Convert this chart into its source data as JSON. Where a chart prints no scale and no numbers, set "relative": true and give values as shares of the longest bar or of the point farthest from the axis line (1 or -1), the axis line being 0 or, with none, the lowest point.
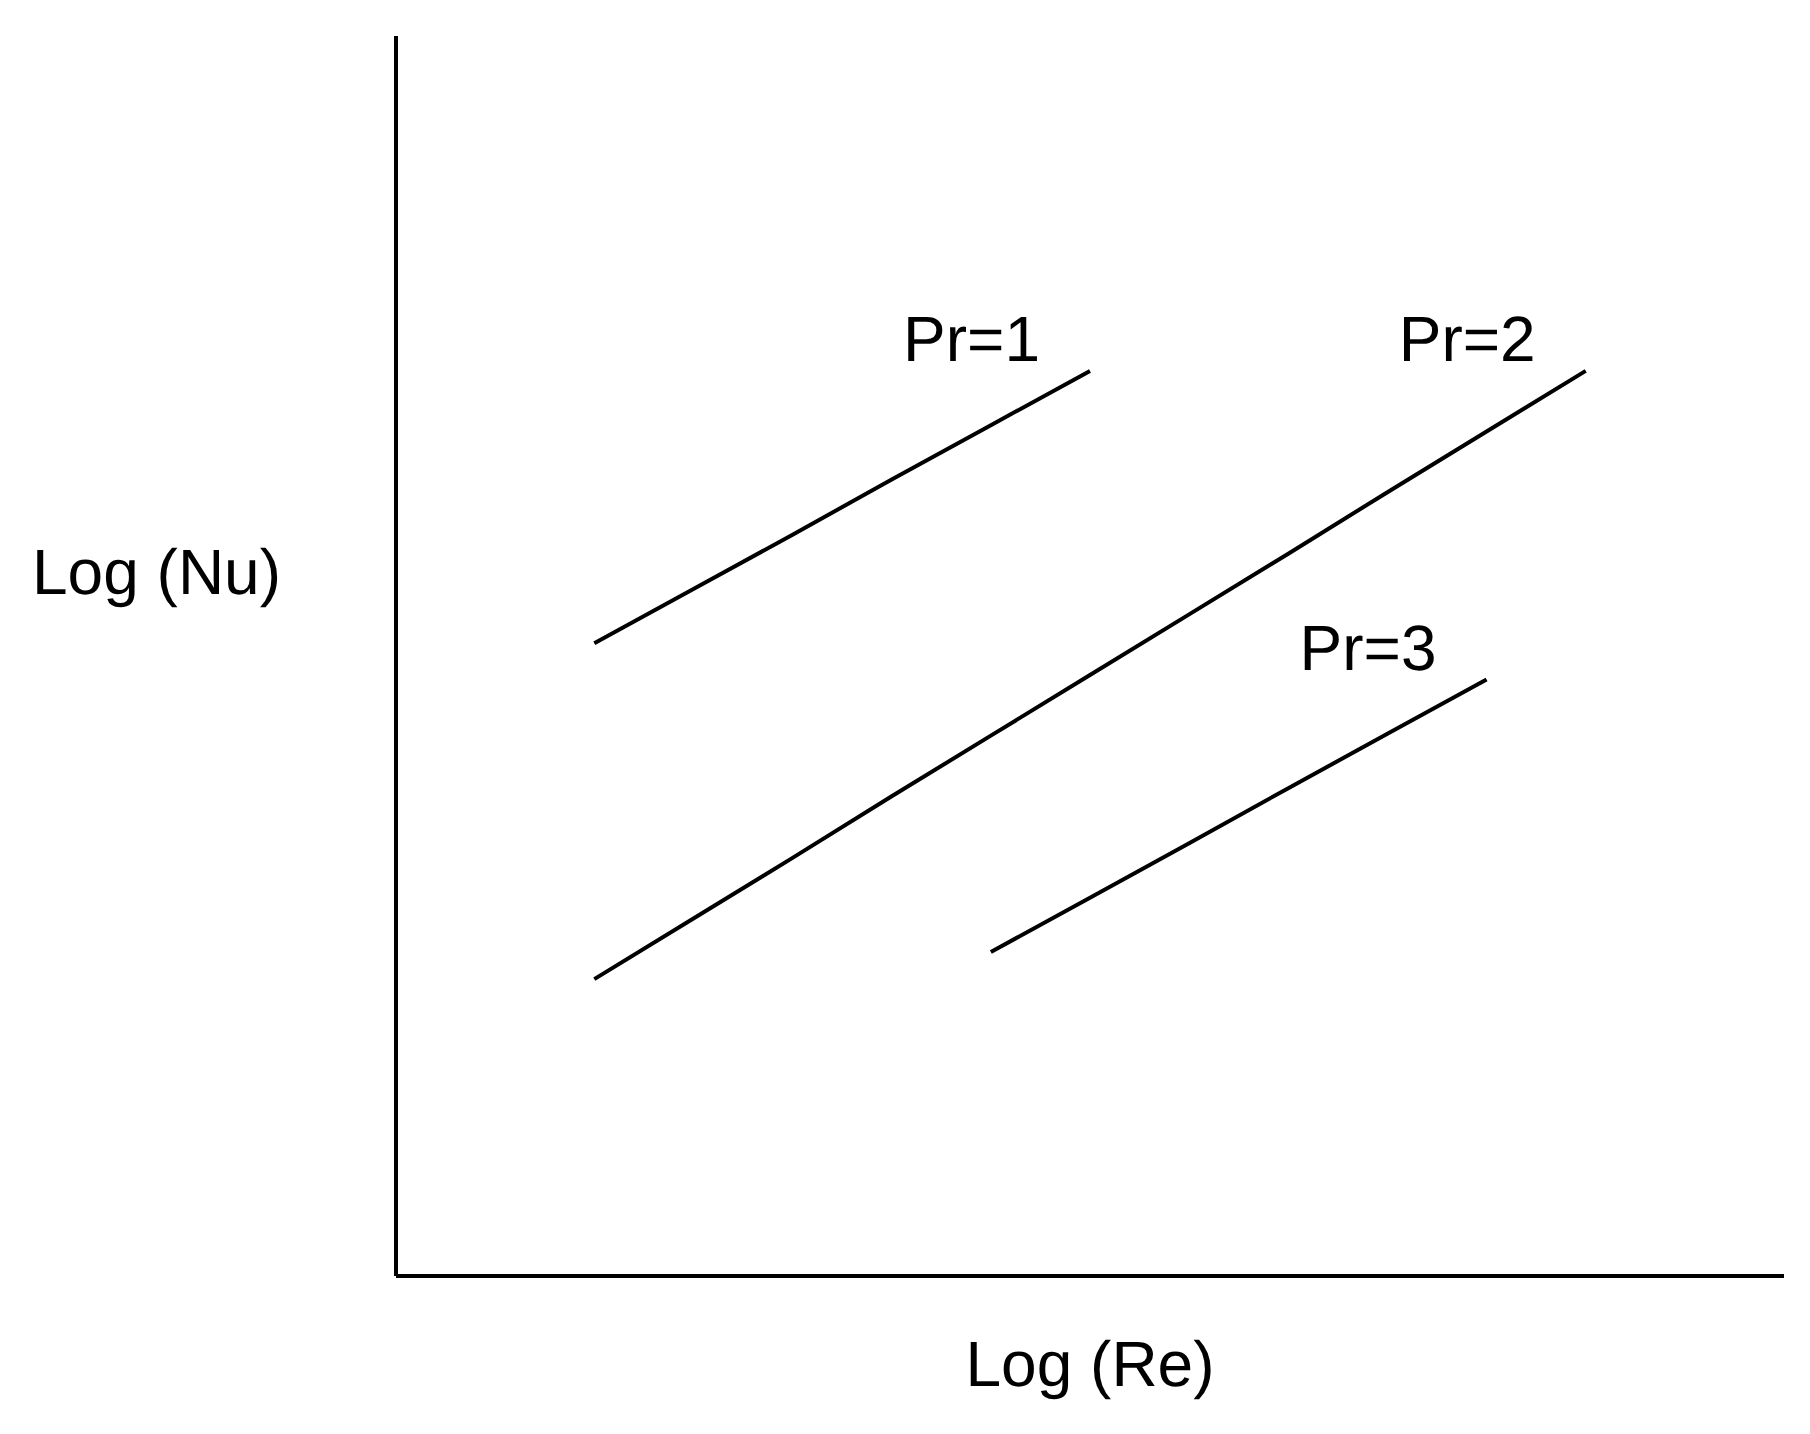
{
  "chart_data": {
    "type": "line",
    "xlabel": "Log (Re)",
    "ylabel": "Log (Nu)",
    "relative": true,
    "grid": false,
    "marker": "none",
    "line_style": "solid",
    "categories": [
      null,
      null,
      null,
      null,
      null,
      null,
      null,
      null,
      null,
      null,
      null,
      null,
      null,
      null,
      null
    ],
    "series": [
      {
        "name": "Pr=1",
        "color": "#000000",
        "values": [
          null,
          null,
          0.699,
          0.759,
          0.819,
          0.88,
          0.94,
          1,
          null,
          null,
          null,
          null,
          null,
          null,
          null
        ]
      },
      {
        "name": "Pr=2",
        "color": "#000000",
        "values": [
          null,
          null,
          0.328,
          0.395,
          0.462,
          0.53,
          0.597,
          0.664,
          0.731,
          0.798,
          0.866,
          0.933,
          1,
          null,
          null
        ]
      },
      {
        "name": "Pr=3",
        "color": "#000000",
        "values": [
          null,
          null,
          null,
          null,
          null,
          null,
          0.358,
          0.418,
          0.478,
          0.539,
          0.599,
          0.659,
          null,
          null,
          null
        ]
      }
    ]
  }
}
